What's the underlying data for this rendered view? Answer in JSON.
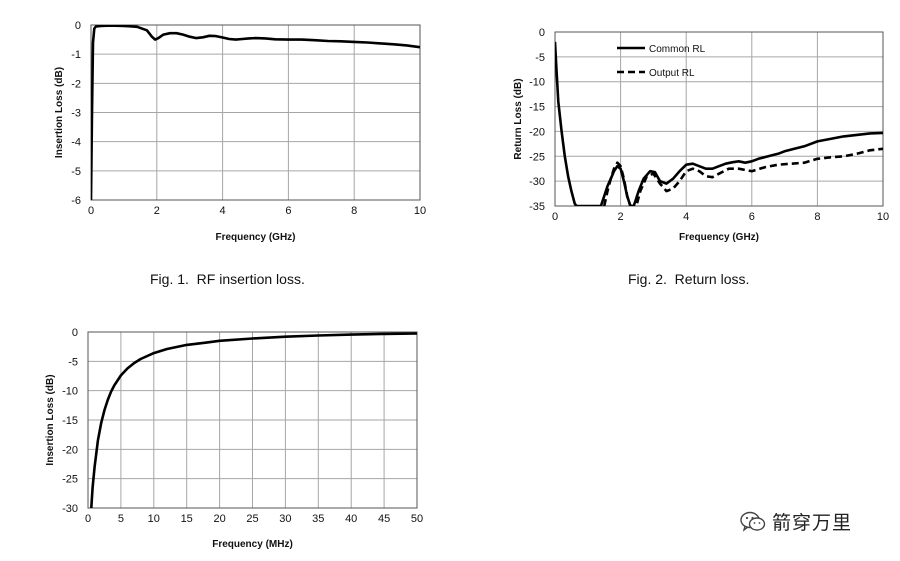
{
  "captions": {
    "fig1": "Fig. 1.  RF insertion loss.",
    "fig2": "Fig. 2.  Return loss."
  },
  "watermark": {
    "text": "箭穿万里",
    "icon": "wechat-icon"
  },
  "chart_data": [
    {
      "id": "rf-insertion-loss",
      "type": "line",
      "title": "",
      "xlabel": "Frequency (GHz)",
      "ylabel": "Insertion Loss (dB)",
      "xlim": [
        0,
        10
      ],
      "ylim": [
        -6,
        0
      ],
      "xticks": [
        0,
        2,
        4,
        6,
        8,
        10
      ],
      "yticks": [
        0,
        -1,
        -2,
        -3,
        -4,
        -5,
        -6
      ],
      "grid": true,
      "legend": "none",
      "series": [
        {
          "style": "solid",
          "x": [
            0.0,
            0.03,
            0.06,
            0.1,
            0.15,
            0.3,
            0.6,
            1.0,
            1.4,
            1.7,
            1.85,
            1.95,
            2.05,
            2.2,
            2.4,
            2.6,
            2.8,
            3.0,
            3.2,
            3.4,
            3.6,
            3.8,
            4.0,
            4.2,
            4.4,
            4.6,
            4.8,
            5.0,
            5.3,
            5.6,
            6.0,
            6.4,
            6.8,
            7.2,
            7.6,
            8.0,
            8.4,
            8.8,
            9.2,
            9.6,
            10.0
          ],
          "y": [
            -6.0,
            -3.0,
            -0.6,
            -0.12,
            -0.05,
            -0.03,
            -0.02,
            -0.03,
            -0.06,
            -0.18,
            -0.4,
            -0.5,
            -0.45,
            -0.33,
            -0.28,
            -0.28,
            -0.33,
            -0.4,
            -0.45,
            -0.42,
            -0.37,
            -0.38,
            -0.43,
            -0.48,
            -0.5,
            -0.48,
            -0.46,
            -0.45,
            -0.46,
            -0.49,
            -0.5,
            -0.5,
            -0.52,
            -0.55,
            -0.56,
            -0.58,
            -0.6,
            -0.63,
            -0.66,
            -0.7,
            -0.76
          ]
        }
      ]
    },
    {
      "id": "return-loss",
      "type": "line",
      "title": "",
      "xlabel": "Frequency (GHz)",
      "ylabel": "Return Loss (dB)",
      "xlim": [
        0,
        10
      ],
      "ylim": [
        -35,
        0
      ],
      "xticks": [
        0,
        2,
        4,
        6,
        8,
        10
      ],
      "yticks": [
        0,
        -5,
        -10,
        -15,
        -20,
        -25,
        -30,
        -35
      ],
      "grid": true,
      "legend": "top-left",
      "series": [
        {
          "name": "Common RL",
          "style": "solid",
          "x": [
            0.0,
            0.05,
            0.1,
            0.2,
            0.3,
            0.4,
            0.5,
            0.6,
            0.65,
            1.4,
            1.5,
            1.6,
            1.7,
            1.8,
            1.9,
            2.0,
            2.1,
            2.2,
            2.3,
            2.4,
            2.45,
            2.55,
            2.7,
            2.9,
            3.05,
            3.2,
            3.4,
            3.6,
            3.8,
            4.0,
            4.2,
            4.4,
            4.6,
            4.8,
            5.0,
            5.2,
            5.4,
            5.6,
            5.8,
            6.0,
            6.2,
            6.5,
            6.8,
            7.0,
            7.3,
            7.6,
            8.0,
            8.4,
            8.8,
            9.2,
            9.6,
            10.0
          ],
          "y": [
            -2,
            -8,
            -14,
            -20,
            -25,
            -29,
            -32,
            -34.5,
            -35,
            -35,
            -33,
            -31,
            -29.5,
            -28,
            -27,
            -27.5,
            -30,
            -33,
            -35,
            -35,
            -34,
            -32,
            -29.5,
            -28,
            -28.2,
            -30,
            -30.5,
            -29.5,
            -28,
            -26.7,
            -26.5,
            -27,
            -27.5,
            -27.5,
            -27,
            -26.5,
            -26.2,
            -26,
            -26.3,
            -26,
            -25.5,
            -25,
            -24.5,
            -24,
            -23.5,
            -23,
            -22,
            -21.5,
            -21,
            -20.7,
            -20.4,
            -20.3
          ]
        },
        {
          "name": "Output RL",
          "style": "dashed",
          "x": [
            1.5,
            1.6,
            1.7,
            1.8,
            1.9,
            2.0,
            2.1,
            2.2,
            2.3,
            2.4,
            2.5,
            2.6,
            2.8,
            3.0,
            3.2,
            3.4,
            3.6,
            3.8,
            4.0,
            4.2,
            4.4,
            4.6,
            4.8,
            5.0,
            5.3,
            5.6,
            6.0,
            6.4,
            6.8,
            7.2,
            7.6,
            8.0,
            8.4,
            8.8,
            9.2,
            9.6,
            10.0
          ],
          "y": [
            -35,
            -32,
            -29.5,
            -27.5,
            -26.3,
            -27,
            -29.5,
            -33,
            -35,
            -35,
            -34.5,
            -32,
            -29,
            -28.5,
            -30.5,
            -32,
            -31.5,
            -30,
            -28,
            -27.5,
            -28,
            -29,
            -29.2,
            -28.5,
            -27.5,
            -27.5,
            -28,
            -27.2,
            -26.7,
            -26.5,
            -26.3,
            -25.5,
            -25.2,
            -25,
            -24.5,
            -23.8,
            -23.5
          ]
        }
      ]
    },
    {
      "id": "mhz-insertion-loss",
      "type": "line",
      "title": "",
      "xlabel": "Frequency (MHz)",
      "ylabel": "Insertion Loss (dB)",
      "xlim": [
        0,
        50
      ],
      "ylim": [
        -30,
        0
      ],
      "xticks": [
        0,
        5,
        10,
        15,
        20,
        25,
        30,
        35,
        40,
        45,
        50
      ],
      "yticks": [
        0,
        -5,
        -10,
        -15,
        -20,
        -25,
        -30
      ],
      "grid": true,
      "legend": "none",
      "series": [
        {
          "style": "solid",
          "x": [
            0.5,
            0.7,
            1,
            1.5,
            2,
            2.5,
            3,
            3.5,
            4,
            5,
            6,
            7,
            8,
            10,
            12,
            15,
            18,
            20,
            25,
            30,
            35,
            40,
            45,
            50
          ],
          "y": [
            -30,
            -26.5,
            -23,
            -18.5,
            -15.5,
            -13.3,
            -11.6,
            -10.2,
            -9.1,
            -7.4,
            -6.2,
            -5.3,
            -4.6,
            -3.6,
            -2.9,
            -2.2,
            -1.8,
            -1.5,
            -1.1,
            -0.8,
            -0.6,
            -0.45,
            -0.33,
            -0.25
          ]
        }
      ]
    }
  ]
}
